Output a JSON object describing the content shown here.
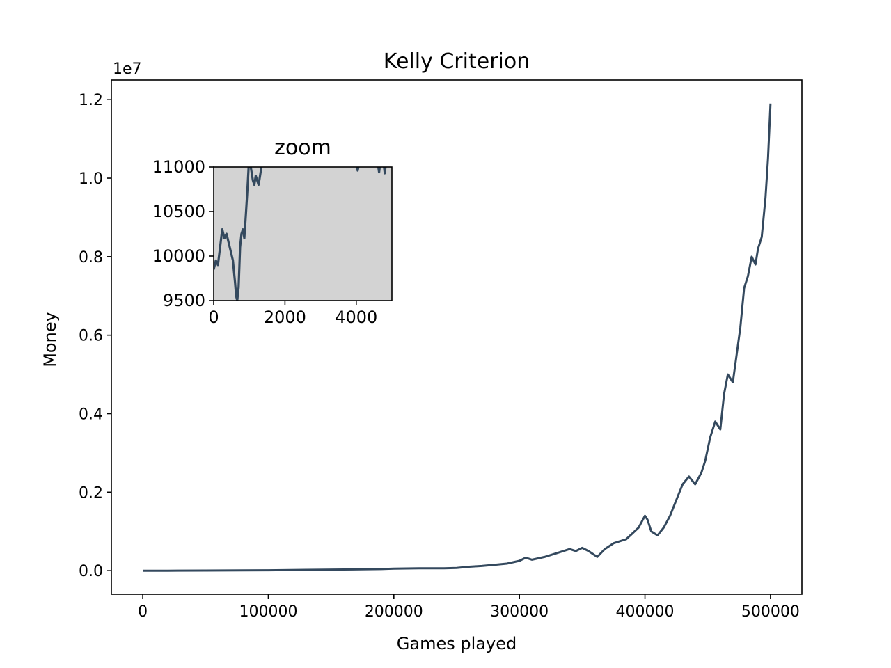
{
  "chart_data": {
    "type": "line",
    "title": "Kelly Criterion",
    "xlabel": "Games played",
    "ylabel": "Money",
    "y_offset_label": "1e7",
    "xlim": [
      -25000,
      525000
    ],
    "ylim": [
      -0.06,
      1.25
    ],
    "y_scale": 10000000,
    "x_ticks": [
      0,
      100000,
      200000,
      300000,
      400000,
      500000
    ],
    "x_tick_labels": [
      "0",
      "100000",
      "200000",
      "300000",
      "400000",
      "500000"
    ],
    "y_ticks": [
      0.0,
      0.2,
      0.4,
      0.6,
      0.8,
      1.0,
      1.2
    ],
    "y_tick_labels": [
      "0.0",
      "0.2",
      "0.4",
      "0.6",
      "0.8",
      "1.0",
      "1.2"
    ],
    "grid": false,
    "line_color": "#34495e",
    "series": [
      {
        "x": [
          0,
          20000,
          50000,
          80000,
          100000,
          130000,
          160000,
          190000,
          200000,
          220000,
          240000,
          250000,
          260000,
          270000,
          280000,
          290000,
          300000,
          305000,
          310000,
          320000,
          330000,
          340000,
          345000,
          350000,
          355000,
          362000,
          368000,
          375000,
          385000,
          390000,
          395000,
          400000,
          402000,
          405000,
          410000,
          415000,
          420000,
          425000,
          430000,
          435000,
          440000,
          445000,
          448000,
          452000,
          456000,
          460000,
          463000,
          466000,
          470000,
          473000,
          476000,
          479000,
          482000,
          485000,
          488000,
          490000,
          493000,
          496000,
          498000,
          499000,
          500000
        ],
        "y": [
          0.0,
          0.0,
          0.0003,
          0.0008,
          0.001,
          0.002,
          0.003,
          0.004,
          0.005,
          0.006,
          0.006,
          0.007,
          0.01,
          0.012,
          0.015,
          0.018,
          0.025,
          0.033,
          0.028,
          0.035,
          0.045,
          0.055,
          0.05,
          0.058,
          0.05,
          0.035,
          0.055,
          0.07,
          0.08,
          0.095,
          0.11,
          0.14,
          0.13,
          0.1,
          0.09,
          0.11,
          0.14,
          0.18,
          0.22,
          0.24,
          0.22,
          0.25,
          0.28,
          0.34,
          0.38,
          0.36,
          0.45,
          0.5,
          0.48,
          0.55,
          0.62,
          0.72,
          0.75,
          0.8,
          0.78,
          0.82,
          0.85,
          0.95,
          1.05,
          1.12,
          1.19
        ]
      }
    ],
    "inset": {
      "title": "zoom",
      "xlim": [
        0,
        5000
      ],
      "ylim": [
        9500,
        11000
      ],
      "x_ticks": [
        0,
        2000,
        4000
      ],
      "x_tick_labels": [
        "0",
        "2000",
        "4000"
      ],
      "y_ticks": [
        9500,
        10000,
        10500,
        11000
      ],
      "y_tick_labels": [
        "9500",
        "10000",
        "10500",
        "11000"
      ],
      "background": "#d3d3d3",
      "series": [
        {
          "x": [
            0,
            60,
            120,
            180,
            240,
            300,
            360,
            420,
            480,
            540,
            600,
            630,
            660,
            700,
            740,
            780,
            820,
            860,
            900,
            940,
            980,
            1020,
            1060,
            1100,
            1140,
            1180,
            1220,
            1260,
            1300,
            1340,
            1380,
            1420,
            1460
          ],
          "y": [
            9850,
            9950,
            9900,
            10100,
            10300,
            10200,
            10250,
            10150,
            10050,
            9950,
            9700,
            9550,
            9500,
            9650,
            10100,
            10250,
            10300,
            10200,
            10450,
            10700,
            11000,
            11050,
            10950,
            10850,
            10800,
            10900,
            10850,
            10800,
            10900,
            11000,
            11100,
            11200,
            11300
          ]
        },
        {
          "x": [
            4020,
            4040,
            4060
          ],
          "y": [
            11000,
            10960,
            11000
          ]
        },
        {
          "x": [
            4620,
            4640,
            4660
          ],
          "y": [
            11000,
            10940,
            11000
          ]
        },
        {
          "x": [
            4780,
            4800,
            4820
          ],
          "y": [
            11000,
            10930,
            11000
          ]
        }
      ]
    }
  }
}
